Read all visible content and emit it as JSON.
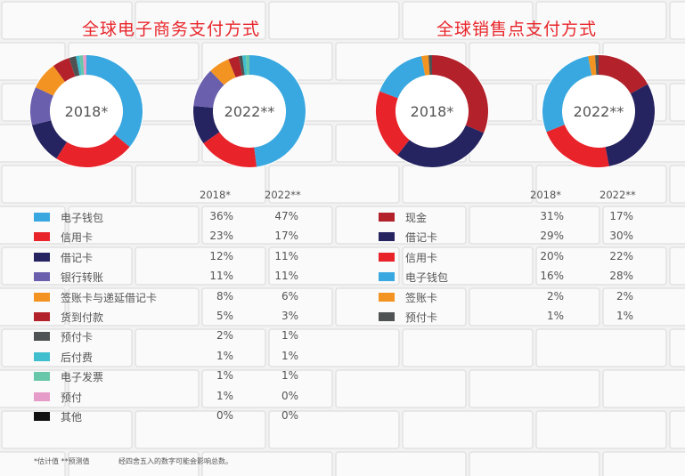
{
  "colors": {
    "bg": "#f2f2f2",
    "title": "#e8262b"
  },
  "titles": {
    "ecommerce": "全球电子商务支付方式",
    "pos": "全球销售点支付方式"
  },
  "headers": {
    "y2018": "2018*",
    "y2022": "2022**"
  },
  "footnotes": {
    "estimate": "*估计值   **预测值",
    "rounding": "经四舍五入的数字可能会影响总数。"
  },
  "chart_data": [
    {
      "type": "pie",
      "title": "全球电子商务支付方式",
      "donut": true,
      "years": [
        "2018*",
        "2022**"
      ],
      "legend_placement": "below",
      "series": [
        {
          "label": "电子钱包",
          "color": "#3aa8e0",
          "values": [
            36,
            47
          ],
          "labels": [
            "36%",
            "47%"
          ]
        },
        {
          "label": "信用卡",
          "color": "#e8232a",
          "values": [
            23,
            17
          ],
          "labels": [
            "23%",
            "17%"
          ]
        },
        {
          "label": "借记卡",
          "color": "#252360",
          "values": [
            12,
            11
          ],
          "labels": [
            "12%",
            "11%"
          ]
        },
        {
          "label": "银行转账",
          "color": "#6a5fad",
          "values": [
            11,
            11
          ],
          "labels": [
            "11%",
            "11%"
          ]
        },
        {
          "label": "签账卡与递延借记卡",
          "color": "#f39422",
          "values": [
            8,
            6
          ],
          "labels": [
            "8%",
            "6%"
          ]
        },
        {
          "label": "货到付款",
          "color": "#b3212a",
          "values": [
            5,
            3
          ],
          "labels": [
            "5%",
            "3%"
          ]
        },
        {
          "label": "预付卡",
          "color": "#4f5252",
          "values": [
            2,
            1
          ],
          "labels": [
            "2%",
            "1%"
          ]
        },
        {
          "label": "后付费",
          "color": "#3fbfce",
          "values": [
            1,
            1
          ],
          "labels": [
            "1%",
            "1%"
          ]
        },
        {
          "label": "电子发票",
          "color": "#68c7a8",
          "values": [
            1,
            1
          ],
          "labels": [
            "1%",
            "1%"
          ]
        },
        {
          "label": "预付",
          "color": "#e69cc8",
          "values": [
            1,
            0
          ],
          "labels": [
            "1%",
            "0%"
          ]
        },
        {
          "label": "其他",
          "color": "#111111",
          "values": [
            0,
            0
          ],
          "labels": [
            "0%",
            "0%"
          ]
        }
      ]
    },
    {
      "type": "pie",
      "title": "全球销售点支付方式",
      "donut": true,
      "years": [
        "2018*",
        "2022**"
      ],
      "legend_placement": "below",
      "series": [
        {
          "label": "现金",
          "color": "#b3212a",
          "values": [
            31,
            17
          ],
          "labels": [
            "31%",
            "17%"
          ]
        },
        {
          "label": "借记卡",
          "color": "#252360",
          "values": [
            29,
            30
          ],
          "labels": [
            "29%",
            "30%"
          ]
        },
        {
          "label": "信用卡",
          "color": "#e8232a",
          "values": [
            20,
            22
          ],
          "labels": [
            "20%",
            "22%"
          ]
        },
        {
          "label": "电子钱包",
          "color": "#3aa8e0",
          "values": [
            16,
            28
          ],
          "labels": [
            "16%",
            "28%"
          ]
        },
        {
          "label": "签账卡",
          "color": "#f39422",
          "values": [
            2,
            2
          ],
          "labels": [
            "2%",
            "2%"
          ]
        },
        {
          "label": "预付卡",
          "color": "#4f5252",
          "values": [
            1,
            1
          ],
          "labels": [
            "1%",
            "1%"
          ]
        }
      ]
    }
  ]
}
